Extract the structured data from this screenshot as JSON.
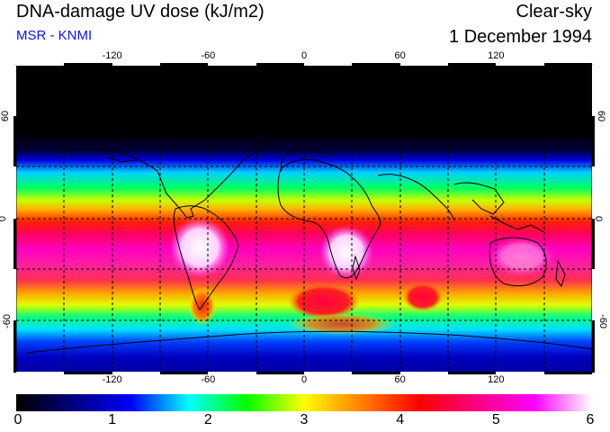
{
  "header": {
    "title": "DNA-damage UV dose (kJ/m2)",
    "credit": "MSR - KNMI",
    "condition": "Clear-sky",
    "date": "1 December 1994"
  },
  "colors": {
    "credit": "#1010e0"
  },
  "map": {
    "lon_ticks": [
      "-120",
      "-60",
      "0",
      "60",
      "120"
    ],
    "lon_values": [
      -120,
      -60,
      0,
      60,
      120
    ],
    "lat_ticks": [
      "60",
      "0",
      "-60"
    ],
    "lat_values": [
      60,
      0,
      -60
    ],
    "lon_range": [
      -180,
      180
    ],
    "lat_range": [
      -90,
      90
    ]
  },
  "colorbar": {
    "labels": [
      "0",
      "1",
      "2",
      "3",
      "4",
      "5",
      "6"
    ],
    "min": 0,
    "max": 6,
    "stops": [
      "#000000",
      "#000080",
      "#0000ff",
      "#00ffff",
      "#00ff00",
      "#ffff00",
      "#ff8000",
      "#ff0000",
      "#ff0080",
      "#ff00ff",
      "#ffffff"
    ]
  }
}
